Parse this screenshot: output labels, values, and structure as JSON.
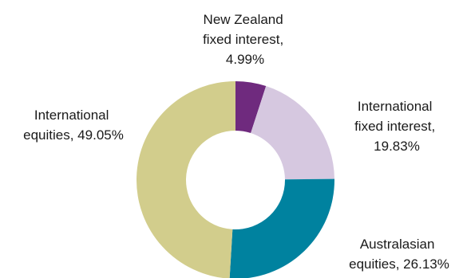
{
  "chart_data": {
    "type": "pie",
    "donut": true,
    "title": "",
    "start_angle_deg": 0,
    "direction": "clockwise",
    "slices": [
      {
        "name": "New Zealand fixed interest",
        "value": 4.99,
        "color": "#6f2a7e",
        "label_lines": [
          "New Zealand",
          "fixed interest,",
          "4.99%"
        ]
      },
      {
        "name": "International fixed interest",
        "value": 19.83,
        "color": "#d6c8e0",
        "label_lines": [
          "International",
          "fixed interest,",
          "19.83%"
        ]
      },
      {
        "name": "Australasian equities",
        "value": 26.13,
        "color": "#00829f",
        "label_lines": [
          "Australasian",
          "equities, 26.13%"
        ]
      },
      {
        "name": "International equities",
        "value": 49.05,
        "color": "#d2cd8c",
        "label_lines": [
          "International",
          "equities, 49.05%"
        ]
      }
    ]
  }
}
